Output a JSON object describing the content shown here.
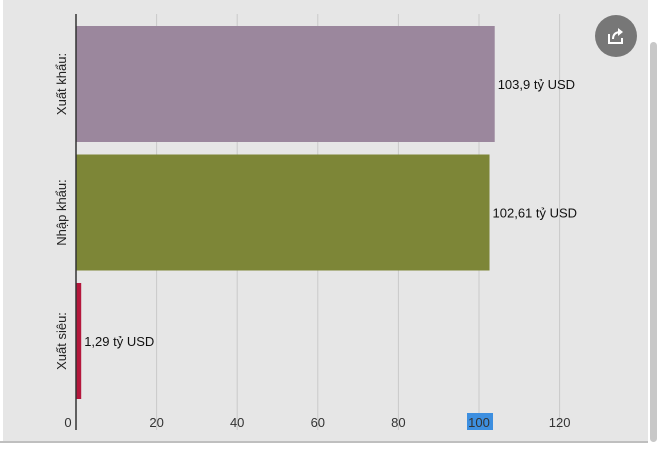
{
  "chart_data": {
    "type": "bar",
    "orientation": "horizontal",
    "categories": [
      "Xuất khẩu:",
      "Nhập khẩu:",
      "Xuất siêu:"
    ],
    "values": [
      103.9,
      102.61,
      1.29
    ],
    "value_labels": [
      "103,9 tỷ USD",
      "102,61 tỷ USD",
      "1,29 tỷ USD"
    ],
    "colors": [
      "#9b879d",
      "#7d8637",
      "#b4173c"
    ],
    "x_ticks": [
      0,
      20,
      40,
      60,
      80,
      100,
      120
    ],
    "x_tick_labels": [
      "0",
      "20",
      "40",
      "60",
      "80",
      "100",
      "120"
    ],
    "highlighted_tick": "100",
    "highlight_color": "#3d8fe0",
    "xlim": [
      0,
      140
    ],
    "grid": true,
    "title": "",
    "xlabel": "",
    "ylabel": ""
  },
  "share_button": {
    "icon": "share-icon"
  }
}
